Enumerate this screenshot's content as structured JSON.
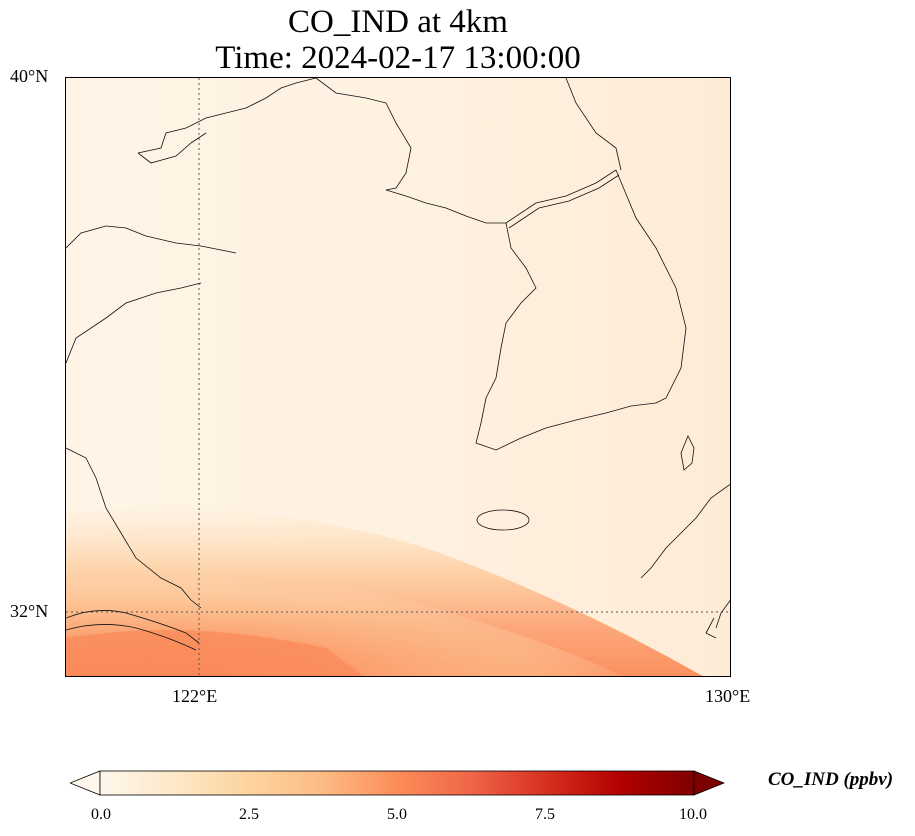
{
  "title": {
    "line1": "CO_IND at 4km",
    "line2": "Time: 2024-02-17 13:00:00"
  },
  "map": {
    "lat_ticks": [
      "40°N",
      "32°N"
    ],
    "lon_ticks": [
      "122°E",
      "130°E"
    ],
    "extent": {
      "lon": [
        120,
        130
      ],
      "lat": [
        31,
        40
      ]
    },
    "gridlines": {
      "lon": [
        122
      ],
      "lat": [
        32
      ],
      "style": "dotted"
    },
    "field": {
      "variable": "CO_IND",
      "description_high_region": "higher values concentrated in southwest corner near 31–32°N, 120–127°E",
      "max_visible_value": 4.5,
      "background_value": 0.5
    }
  },
  "colorbar": {
    "label": "CO_IND (ppbv)",
    "ticks": [
      "0.0",
      "2.5",
      "5.0",
      "7.5",
      "10.0"
    ],
    "range": [
      0,
      10
    ],
    "colormap": "OrRd",
    "colors": [
      "#fff7ec",
      "#fee8c8",
      "#fdd49e",
      "#fdbb84",
      "#fc8d59",
      "#ef6548",
      "#d7301f",
      "#b30000",
      "#7f0000"
    ],
    "extend": "both"
  }
}
